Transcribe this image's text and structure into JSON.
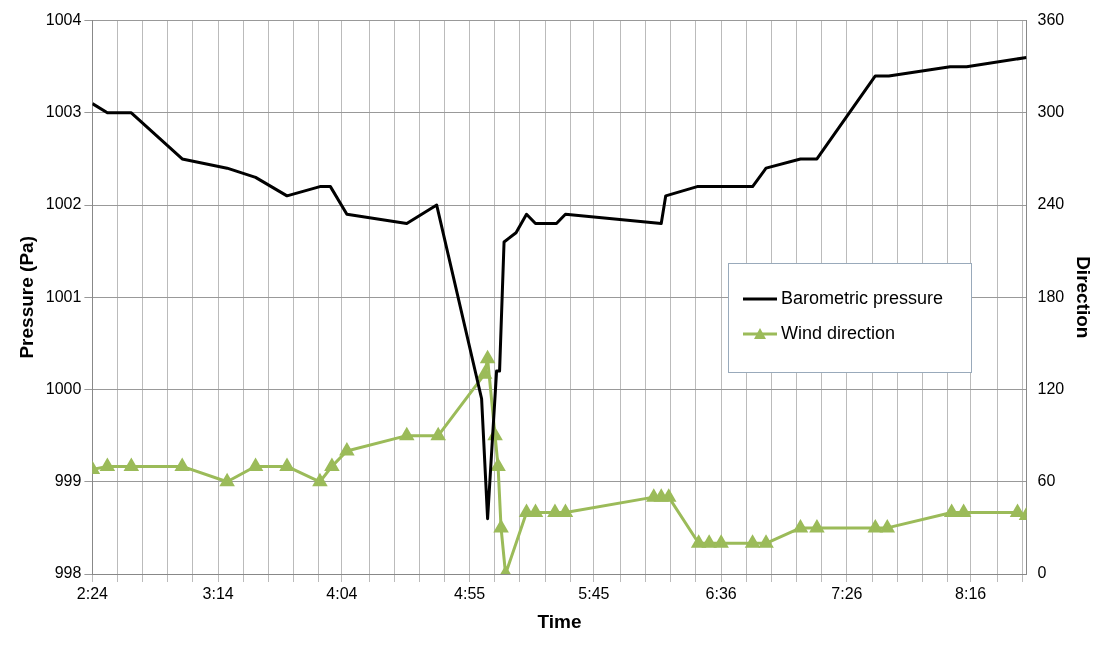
{
  "chart_data": {
    "type": "line",
    "xlabel": "Time",
    "ylabel": "Pressure (Pa)",
    "y2label": "Direction",
    "xlim": [
      2.4,
      8.64
    ],
    "xticks": [
      {
        "value": 2.4,
        "label": "2:24"
      },
      {
        "value": 2.568,
        "label": null
      },
      {
        "value": 2.736,
        "label": null
      },
      {
        "value": 2.904,
        "label": null
      },
      {
        "value": 3.072,
        "label": null
      },
      {
        "value": 3.24,
        "label": "3:14"
      },
      {
        "value": 3.408,
        "label": null
      },
      {
        "value": 3.576,
        "label": null
      },
      {
        "value": 3.744,
        "label": null
      },
      {
        "value": 3.912,
        "label": null
      },
      {
        "value": 4.0667,
        "label": "4:04"
      },
      {
        "value": 4.248,
        "label": null
      },
      {
        "value": 4.416,
        "label": null
      },
      {
        "value": 4.584,
        "label": null
      },
      {
        "value": 4.752,
        "label": null
      },
      {
        "value": 4.92,
        "label": "4:55"
      },
      {
        "value": 5.088,
        "label": null
      },
      {
        "value": 5.256,
        "label": null
      },
      {
        "value": 5.424,
        "label": null
      },
      {
        "value": 5.592,
        "label": null
      },
      {
        "value": 5.75,
        "label": "5:45"
      },
      {
        "value": 5.928,
        "label": null
      },
      {
        "value": 6.096,
        "label": null
      },
      {
        "value": 6.264,
        "label": null
      },
      {
        "value": 6.432,
        "label": null
      },
      {
        "value": 6.6,
        "label": "6:36"
      },
      {
        "value": 6.768,
        "label": null
      },
      {
        "value": 6.936,
        "label": null
      },
      {
        "value": 7.104,
        "label": null
      },
      {
        "value": 7.272,
        "label": null
      },
      {
        "value": 7.44,
        "label": "7:26"
      },
      {
        "value": 7.608,
        "label": null
      },
      {
        "value": 7.776,
        "label": null
      },
      {
        "value": 7.944,
        "label": null
      },
      {
        "value": 8.112,
        "label": null
      },
      {
        "value": 8.2667,
        "label": "8:16"
      },
      {
        "value": 8.448,
        "label": null
      },
      {
        "value": 8.616,
        "label": null
      }
    ],
    "ylim": [
      998,
      1004
    ],
    "yticks": [
      998,
      999,
      1000,
      1001,
      1002,
      1003,
      1004
    ],
    "y2lim": [
      0,
      360
    ],
    "y2ticks": [
      0,
      60,
      120,
      180,
      240,
      300,
      360
    ],
    "grid": true,
    "legend": "right",
    "series": [
      {
        "name": "Barometric pressure",
        "color": "#000000",
        "marker": "none",
        "x": [
          2.4,
          2.5,
          2.66,
          3.0,
          3.3,
          3.49,
          3.7,
          3.92,
          3.99,
          4.1,
          4.5,
          4.7,
          5.0,
          5.04,
          5.1,
          5.12,
          5.15,
          5.23,
          5.3,
          5.36,
          5.5,
          5.56,
          6.2,
          6.23,
          6.44,
          6.81,
          6.9,
          7.13,
          7.24,
          7.63,
          7.72,
          8.13,
          8.24,
          8.64
        ],
        "values": [
          1003.1,
          1003.0,
          1003.0,
          1002.5,
          1002.4,
          1002.3,
          1002.1,
          1002.2,
          1002.2,
          1001.9,
          1001.8,
          1002.0,
          999.9,
          998.6,
          1000.2,
          1000.2,
          1001.6,
          1001.7,
          1001.9,
          1001.8,
          1001.8,
          1001.9,
          1001.8,
          1002.1,
          1002.2,
          1002.2,
          1002.4,
          1002.5,
          1002.5,
          1003.4,
          1003.4,
          1003.5,
          1003.5,
          1003.6
        ]
      },
      {
        "name": "Wind direction",
        "color": "#9bbb59",
        "marker": "triangle",
        "axis": "y2",
        "x": [
          2.4,
          2.5,
          2.66,
          3.0,
          3.3,
          3.49,
          3.7,
          3.92,
          4.0,
          4.1,
          4.5,
          4.71,
          5.02,
          5.04,
          5.09,
          5.11,
          5.13,
          5.16,
          5.3,
          5.36,
          5.49,
          5.56,
          6.15,
          6.2,
          6.25,
          6.45,
          6.52,
          6.6,
          6.81,
          6.9,
          7.13,
          7.24,
          7.63,
          7.71,
          8.14,
          8.22,
          8.58,
          8.64
        ],
        "values": [
          68,
          70,
          70,
          70,
          60,
          70,
          70,
          60,
          70,
          80,
          90,
          90,
          130,
          140,
          90,
          70,
          30,
          0,
          40,
          40,
          40,
          40,
          50,
          50,
          50,
          20,
          20,
          20,
          20,
          20,
          30,
          30,
          30,
          30,
          40,
          40,
          40,
          38
        ]
      }
    ]
  }
}
